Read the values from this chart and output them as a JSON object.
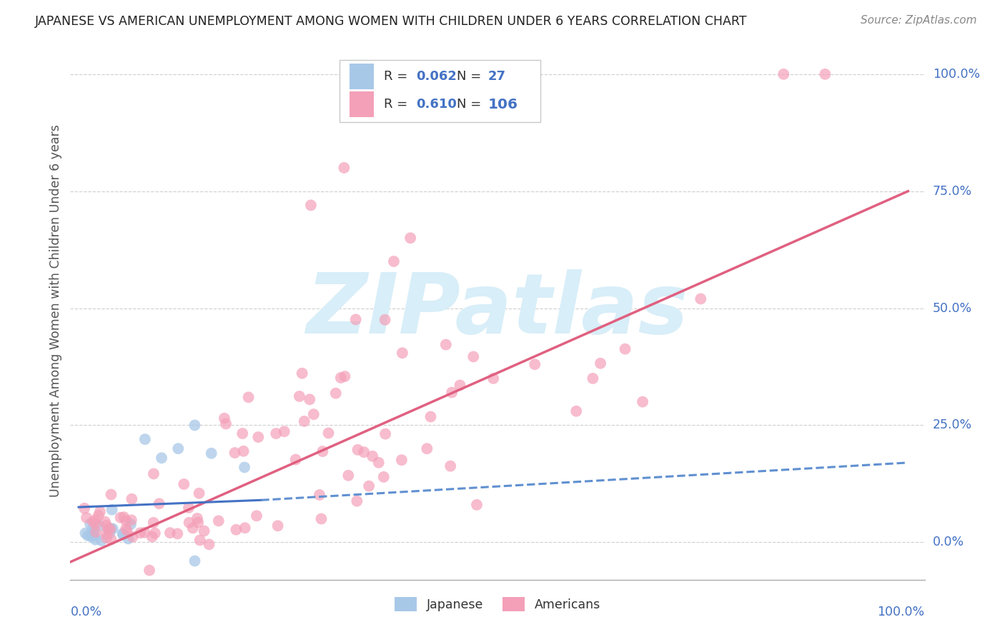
{
  "title": "JAPANESE VS AMERICAN UNEMPLOYMENT AMONG WOMEN WITH CHILDREN UNDER 6 YEARS CORRELATION CHART",
  "source": "Source: ZipAtlas.com",
  "ylabel": "Unemployment Among Women with Children Under 6 years",
  "ytick_labels": [
    "100.0%",
    "75.0%",
    "50.0%",
    "25.0%",
    "0.0%"
  ],
  "ytick_values": [
    1.0,
    0.75,
    0.5,
    0.25,
    0.0
  ],
  "xtick_left": "0.0%",
  "xtick_right": "100.0%",
  "legend_r_japanese": "0.062",
  "legend_n_japanese": "27",
  "legend_r_americans": "0.610",
  "legend_n_americans": "106",
  "color_japanese": "#a8c8e8",
  "color_americans": "#f4a0b8",
  "color_trend_japanese_solid": "#4472c4",
  "color_trend_japanese_dashed": "#6090d0",
  "color_trend_americans": "#e06080",
  "watermark_color": "#d8eef8",
  "grid_color": "#cccccc",
  "bg_color": "#ffffff",
  "title_color": "#222222",
  "axis_label_color": "#555555",
  "tick_label_color": "#4472c4",
  "legend_text_color": "#333333",
  "source_color": "#888888",
  "trend_am_x0": -0.02,
  "trend_am_y0": -0.05,
  "trend_am_x1": 1.0,
  "trend_am_y1": 0.75,
  "trend_jp_solid_x0": 0.0,
  "trend_jp_solid_y0": 0.075,
  "trend_jp_solid_x1": 0.22,
  "trend_jp_solid_y1": 0.09,
  "trend_jp_dash_x0": 0.22,
  "trend_jp_dash_y0": 0.09,
  "trend_jp_dash_x1": 1.0,
  "trend_jp_dash_y1": 0.17,
  "xlim_lo": -0.01,
  "xlim_hi": 1.02,
  "ylim_lo": -0.08,
  "ylim_hi": 1.07
}
